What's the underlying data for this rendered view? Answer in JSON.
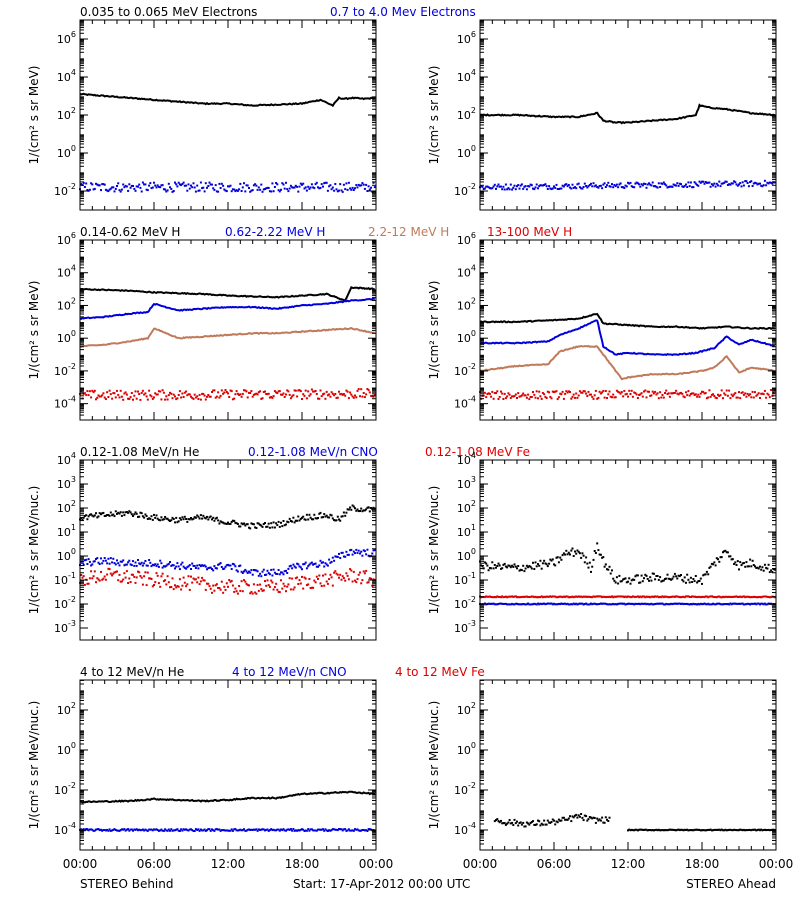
{
  "colors": {
    "black": "#000000",
    "blue": "#0000dd",
    "tan": "#c07a5a",
    "red": "#dd0000"
  },
  "footer": {
    "left": "STEREO Behind",
    "center": "Start: 17-Apr-2012 00:00 UTC",
    "right": "STEREO Ahead"
  },
  "xticks": [
    "00:00",
    "06:00",
    "12:00",
    "18:00",
    "00:00"
  ],
  "chart_data": [
    {
      "type": "scatter",
      "row": 1,
      "ylabel_html": "1/(cm² s sr MeV)",
      "ylog": true,
      "yticks": [
        -2,
        0,
        2,
        4,
        6
      ],
      "ylim": [
        -3,
        7
      ],
      "xlim_hours": [
        0,
        24
      ],
      "legend": [
        {
          "text": "0.035 to 0.065 MeV Electrons",
          "color": "black"
        },
        {
          "text": "0.7 to 4.0 Mev Electrons",
          "color": "blue"
        }
      ],
      "panels": [
        {
          "spacecraft": "STEREO Behind",
          "series": [
            {
              "color": "black",
              "style": "line",
              "x": [
                0,
                2,
                4,
                6,
                8,
                10,
                12,
                14,
                16,
                18,
                19.5,
                20.5,
                21,
                21.5,
                22,
                23,
                24
              ],
              "y": [
                3.1,
                3.0,
                2.9,
                2.8,
                2.7,
                2.6,
                2.6,
                2.5,
                2.55,
                2.6,
                2.8,
                2.5,
                2.9,
                2.85,
                2.9,
                2.85,
                2.9
              ]
            },
            {
              "color": "blue",
              "style": "dots",
              "x": [
                0,
                24
              ],
              "y": [
                -1.8,
                -1.8
              ],
              "scatter": 0.25
            }
          ]
        },
        {
          "spacecraft": "STEREO Ahead",
          "series": [
            {
              "color": "black",
              "style": "line",
              "x": [
                0,
                3,
                6,
                8,
                9.5,
                10,
                11,
                12,
                14,
                16,
                17.5,
                17.8,
                18.5,
                20,
                22,
                24
              ],
              "y": [
                2.0,
                2.0,
                1.9,
                1.9,
                2.1,
                1.7,
                1.6,
                1.6,
                1.7,
                1.8,
                2.0,
                2.5,
                2.4,
                2.3,
                2.1,
                2.0
              ]
            },
            {
              "color": "blue",
              "style": "dots",
              "x": [
                0,
                24
              ],
              "y": [
                -1.8,
                -1.6
              ],
              "scatter": 0.15
            }
          ]
        }
      ]
    },
    {
      "type": "scatter",
      "row": 2,
      "ylabel_html": "1/(cm² s sr MeV)",
      "ylog": true,
      "yticks": [
        -4,
        -2,
        0,
        2,
        4,
        6
      ],
      "ylim": [
        -5,
        6
      ],
      "xlim_hours": [
        0,
        24
      ],
      "legend": [
        {
          "text": "0.14-0.62 MeV H",
          "color": "black"
        },
        {
          "text": "0.62-2.22 MeV H",
          "color": "blue"
        },
        {
          "text": "2.2-12 MeV H",
          "color": "tan"
        },
        {
          "text": "13-100 MeV H",
          "color": "red"
        }
      ],
      "panels": [
        {
          "spacecraft": "STEREO Behind",
          "series": [
            {
              "color": "black",
              "style": "line",
              "x": [
                0,
                2,
                4,
                6,
                8,
                10,
                12,
                14,
                16,
                18,
                20,
                21.5,
                22,
                24
              ],
              "y": [
                3.0,
                2.95,
                2.9,
                2.8,
                2.75,
                2.7,
                2.6,
                2.55,
                2.5,
                2.6,
                2.7,
                2.3,
                3.1,
                3.0
              ]
            },
            {
              "color": "blue",
              "style": "line",
              "x": [
                0,
                2,
                4,
                5.5,
                6,
                8,
                10,
                12,
                14,
                16,
                18,
                20,
                22,
                24
              ],
              "y": [
                1.2,
                1.3,
                1.5,
                1.6,
                2.1,
                1.7,
                1.8,
                1.9,
                1.9,
                1.8,
                2.0,
                2.1,
                2.3,
                2.4
              ]
            },
            {
              "color": "tan",
              "style": "line",
              "x": [
                0,
                2,
                4,
                5.5,
                6,
                8,
                10,
                12,
                14,
                16,
                18,
                20,
                22,
                24
              ],
              "y": [
                -0.5,
                -0.4,
                -0.2,
                0,
                0.6,
                0.0,
                0.1,
                0.2,
                0.3,
                0.3,
                0.4,
                0.5,
                0.6,
                0.3
              ]
            },
            {
              "color": "red",
              "style": "dots",
              "x": [
                0,
                24
              ],
              "y": [
                -3.5,
                -3.4
              ],
              "scatter": 0.3
            }
          ]
        },
        {
          "spacecraft": "STEREO Ahead",
          "series": [
            {
              "color": "black",
              "style": "line",
              "x": [
                0,
                3,
                6,
                8,
                9.5,
                10,
                12,
                14,
                16,
                18,
                20,
                22,
                24
              ],
              "y": [
                1.0,
                1.0,
                1.1,
                1.2,
                1.5,
                0.9,
                0.8,
                0.7,
                0.7,
                0.6,
                0.7,
                0.6,
                0.6
              ]
            },
            {
              "color": "blue",
              "style": "line",
              "x": [
                0,
                3,
                5.5,
                6.5,
                8,
                9.5,
                10,
                11,
                12,
                14,
                16,
                17.5,
                19,
                20,
                21,
                22,
                24
              ],
              "y": [
                -0.3,
                -0.3,
                -0.2,
                0.2,
                0.6,
                1.1,
                -0.5,
                -1.0,
                -0.9,
                -1.0,
                -1.0,
                -0.9,
                -0.6,
                0.1,
                -0.4,
                -0.1,
                -0.5
              ]
            },
            {
              "color": "tan",
              "style": "line",
              "x": [
                0,
                3,
                5.5,
                6.5,
                8,
                9.5,
                10.5,
                11.5,
                12,
                14,
                16,
                18,
                19,
                20,
                21,
                22,
                24
              ],
              "y": [
                -2.0,
                -1.7,
                -1.6,
                -0.8,
                -0.5,
                -0.5,
                -1.5,
                -2.5,
                -2.4,
                -2.2,
                -2.2,
                -2.0,
                -1.8,
                -1.1,
                -2.1,
                -1.8,
                -2.0
              ]
            },
            {
              "color": "red",
              "style": "dots",
              "x": [
                0,
                24
              ],
              "y": [
                -3.5,
                -3.4
              ],
              "scatter": 0.25
            }
          ]
        }
      ]
    },
    {
      "type": "scatter",
      "row": 3,
      "ylabel_html": "1/(cm² s sr MeV/nuc.)",
      "ylog": true,
      "yticks": [
        -3,
        -2,
        -1,
        0,
        1,
        2,
        3,
        4
      ],
      "ylim": [
        -3.5,
        4
      ],
      "xlim_hours": [
        0,
        24
      ],
      "legend": [
        {
          "text": "0.12-1.08 MeV/n He",
          "color": "black"
        },
        {
          "text": "0.12-1.08 MeV/n CNO",
          "color": "blue"
        },
        {
          "text": "0.12-1.08 MeV Fe",
          "color": "red"
        }
      ],
      "panels": [
        {
          "spacecraft": "STEREO Behind",
          "series": [
            {
              "color": "black",
              "style": "dots",
              "x": [
                0,
                2,
                4,
                6,
                8,
                10,
                12,
                14,
                16,
                18,
                20,
                21,
                22,
                24
              ],
              "y": [
                1.6,
                1.7,
                1.8,
                1.6,
                1.5,
                1.6,
                1.4,
                1.25,
                1.3,
                1.6,
                1.7,
                1.5,
                2.0,
                1.9
              ],
              "scatter": 0.12
            },
            {
              "color": "blue",
              "style": "dots",
              "x": [
                0,
                2,
                4,
                6,
                8,
                10,
                12,
                14,
                16,
                18,
                20,
                22,
                24
              ],
              "y": [
                -0.3,
                -0.2,
                -0.3,
                -0.3,
                -0.4,
                -0.5,
                -0.4,
                -0.7,
                -0.7,
                -0.4,
                -0.3,
                0.2,
                0.1
              ],
              "scatter": 0.15
            },
            {
              "color": "red",
              "style": "dots",
              "x": [
                0,
                2,
                4,
                6,
                8,
                10,
                12,
                14,
                16,
                18,
                20,
                22,
                24
              ],
              "y": [
                -1.0,
                -0.8,
                -0.9,
                -1.0,
                -1.1,
                -1.2,
                -1.3,
                -1.3,
                -1.3,
                -1.1,
                -1.0,
                -0.8,
                -1.0
              ],
              "scatter": 0.3
            }
          ]
        },
        {
          "spacecraft": "STEREO Ahead",
          "series": [
            {
              "color": "black",
              "style": "dots",
              "x": [
                0,
                3,
                6,
                7,
                8,
                9,
                9.5,
                10,
                11,
                12,
                14,
                16,
                18,
                19,
                20,
                21,
                22,
                24
              ],
              "y": [
                -0.4,
                -0.5,
                -0.3,
                0.1,
                0.2,
                -0.5,
                0.5,
                -0.2,
                -1.0,
                -1.0,
                -0.9,
                -0.9,
                -1.0,
                -0.3,
                0.2,
                -0.4,
                -0.3,
                -0.6
              ],
              "scatter": 0.18
            },
            {
              "color": "blue",
              "style": "dots",
              "x": [
                0,
                24
              ],
              "y": [
                -2.0,
                -2.0
              ],
              "scatter": 0.02
            },
            {
              "color": "red",
              "style": "dots",
              "x": [
                0,
                24
              ],
              "y": [
                -1.7,
                -1.7
              ],
              "scatter": 0.02
            }
          ]
        }
      ]
    },
    {
      "type": "scatter",
      "row": 4,
      "ylabel_html": "1/(cm² s sr MeV/nuc.)",
      "ylog": true,
      "yticks": [
        -4,
        -2,
        0,
        2
      ],
      "ylim": [
        -5,
        3.5
      ],
      "xlim_hours": [
        0,
        24
      ],
      "legend": [
        {
          "text": "4 to 12 MeV/n He",
          "color": "black"
        },
        {
          "text": "4 to 12 MeV/n CNO",
          "color": "blue"
        },
        {
          "text": "4 to 12 MeV Fe",
          "color": "red"
        }
      ],
      "panels": [
        {
          "spacecraft": "STEREO Behind",
          "series": [
            {
              "color": "black",
              "style": "line",
              "x": [
                0,
                4,
                6,
                8,
                10,
                12,
                14,
                16,
                18,
                20,
                22,
                24
              ],
              "y": [
                -2.6,
                -2.55,
                -2.45,
                -2.5,
                -2.55,
                -2.5,
                -2.4,
                -2.4,
                -2.2,
                -2.15,
                -2.1,
                -2.2
              ]
            },
            {
              "color": "blue",
              "style": "dots",
              "x": [
                0,
                24
              ],
              "y": [
                -4.0,
                -4.0
              ],
              "scatter": 0.05
            }
          ]
        },
        {
          "spacecraft": "STEREO Ahead",
          "series": [
            {
              "color": "black",
              "style": "dots",
              "x": [
                1.2,
                2,
                4,
                6,
                7,
                8,
                9,
                10.5
              ],
              "y": [
                -3.5,
                -3.6,
                -3.7,
                -3.6,
                -3.5,
                -3.3,
                -3.5,
                -3.5
              ],
              "scatter": 0.15
            },
            {
              "color": "black",
              "style": "dots",
              "x": [
                12,
                24
              ],
              "y": [
                -4.0,
                -4.0
              ],
              "scatter": 0.02
            }
          ]
        }
      ]
    }
  ]
}
